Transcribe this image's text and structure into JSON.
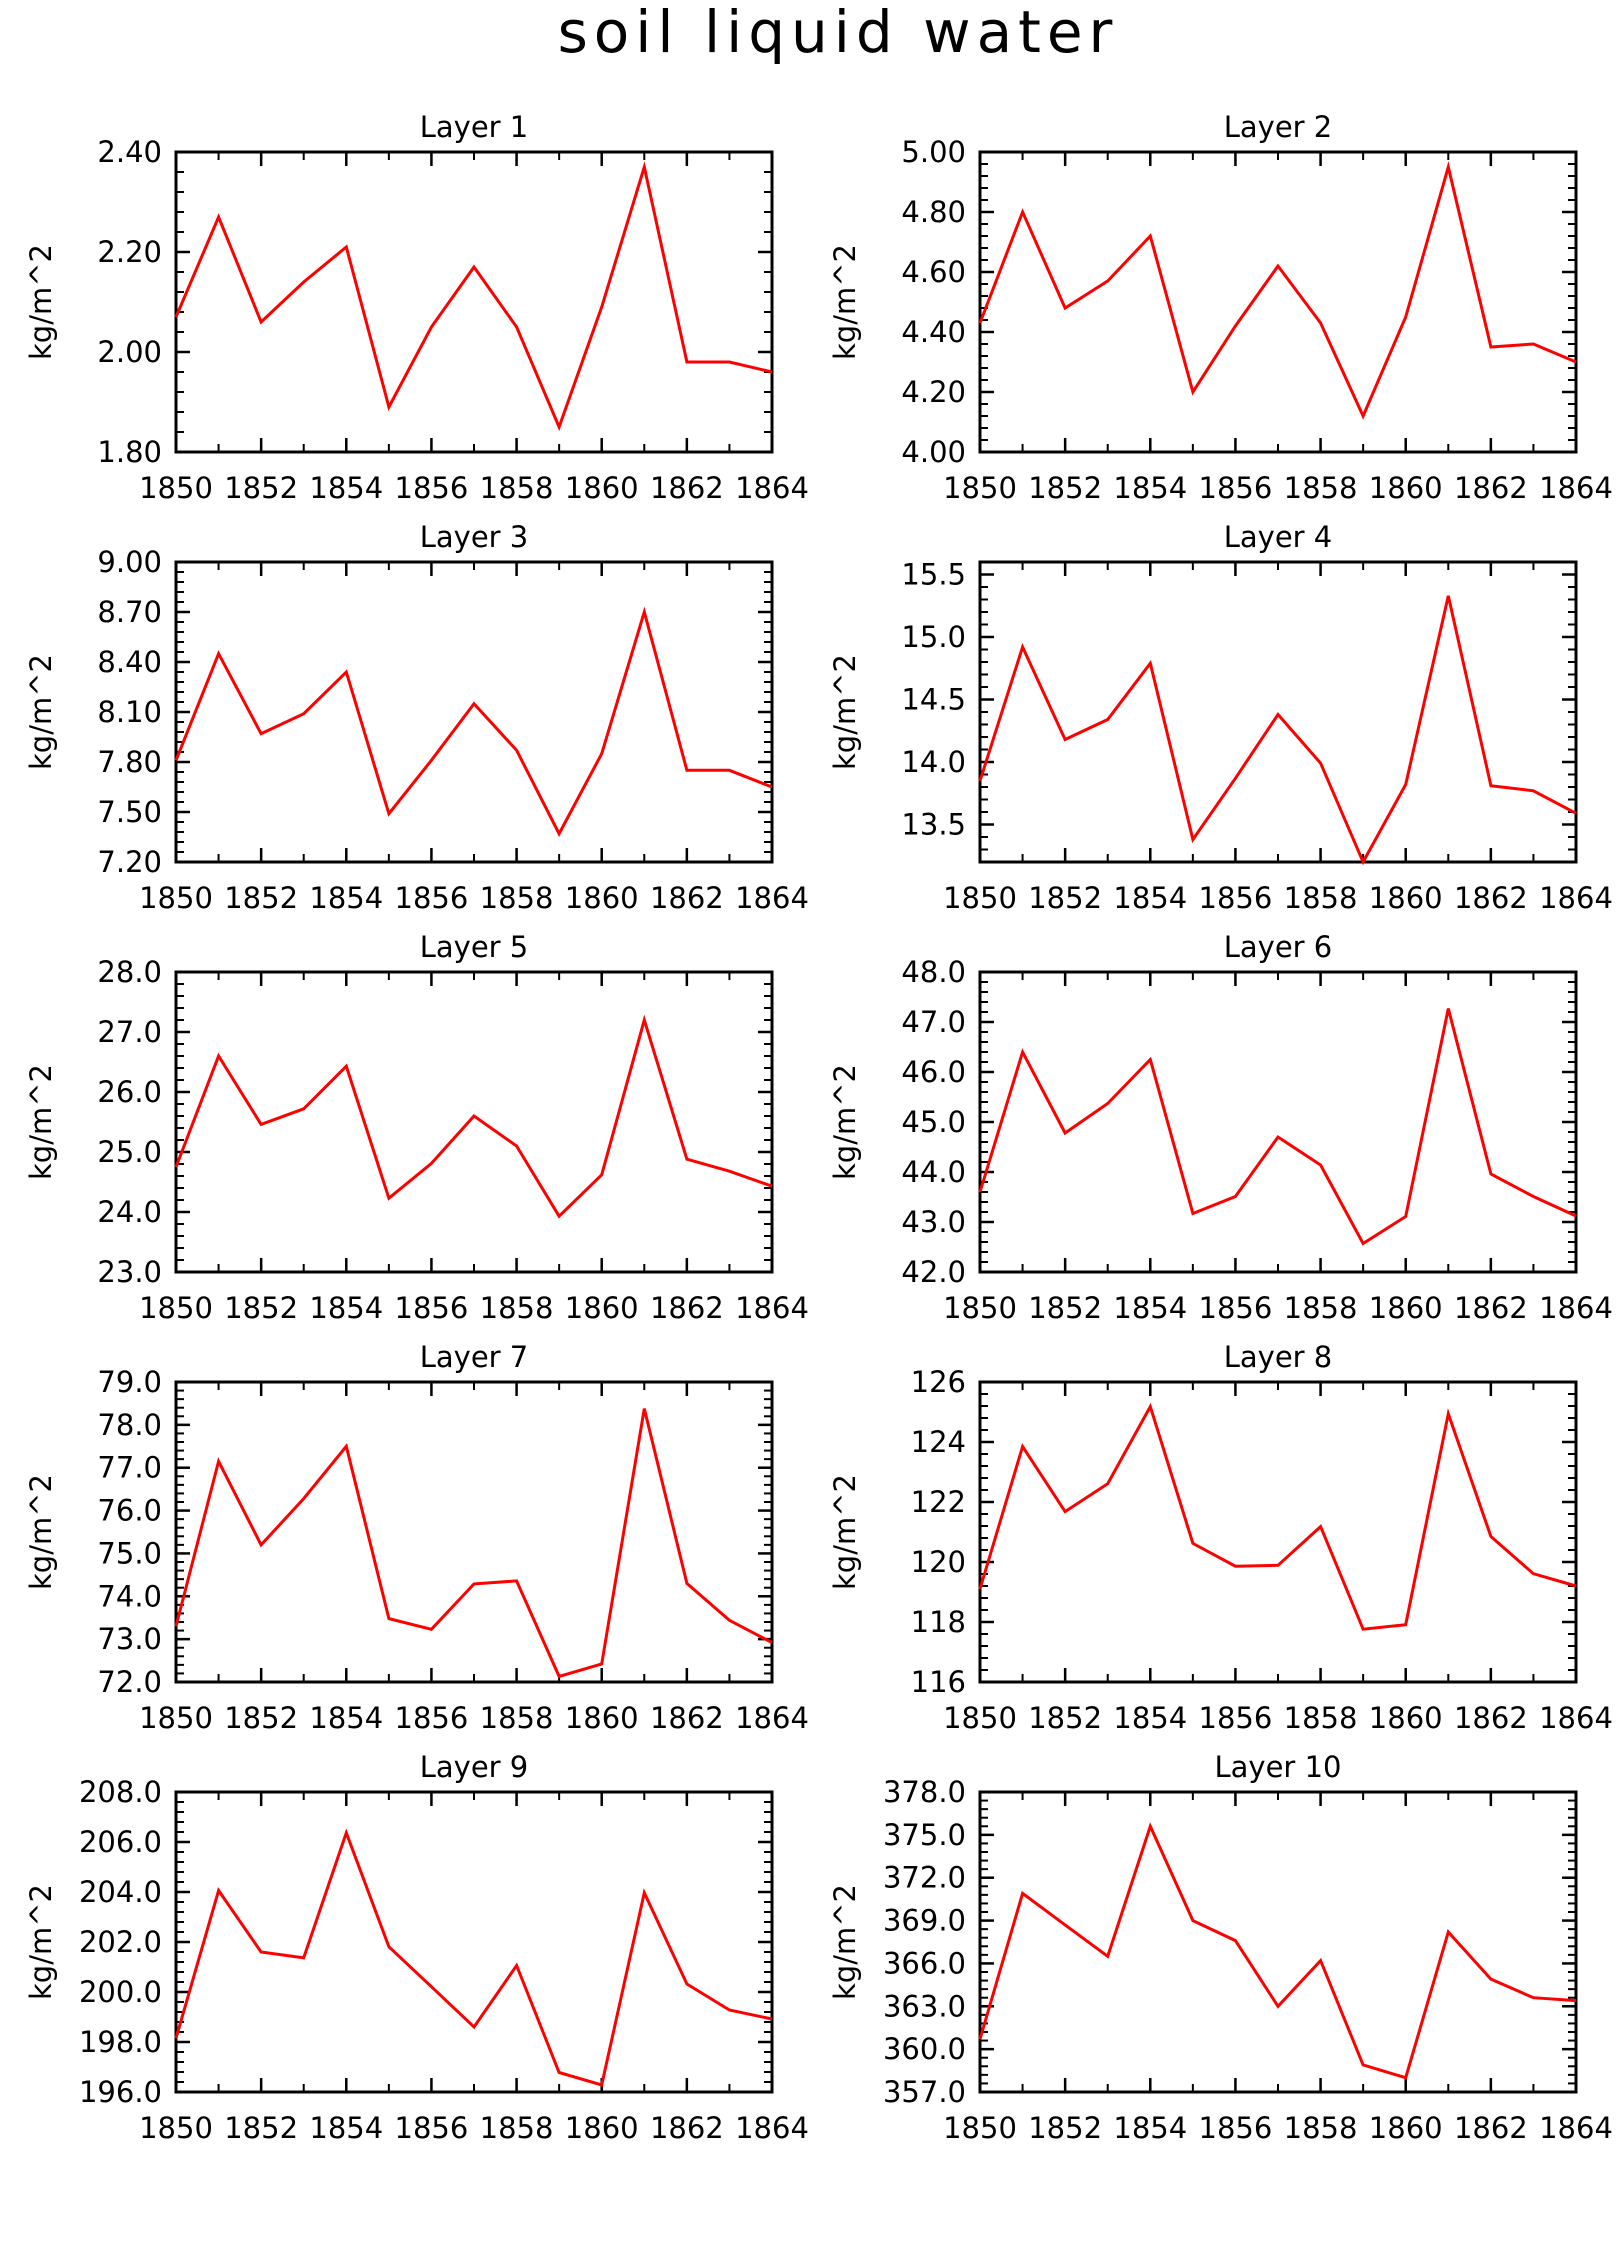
{
  "figure": {
    "title": "soil liquid water"
  },
  "chart_data": [
    {
      "type": "line",
      "title": "Layer 1",
      "ylabel": "kg/m^2",
      "x": [
        1850,
        1851,
        1852,
        1853,
        1854,
        1855,
        1856,
        1857,
        1858,
        1859,
        1860,
        1861,
        1862,
        1863,
        1864
      ],
      "values": [
        2.07,
        2.27,
        2.06,
        2.14,
        2.21,
        1.89,
        2.05,
        2.17,
        2.05,
        1.85,
        2.09,
        2.37,
        1.98,
        1.98,
        1.96
      ],
      "xlim": [
        1850,
        1864
      ],
      "ylim": [
        1.8,
        2.4
      ],
      "xticks": [
        "1850",
        "1852",
        "1854",
        "1856",
        "1858",
        "1860",
        "1862",
        "1864"
      ],
      "yticks": [
        "1.80",
        "2.00",
        "2.20",
        "2.40"
      ],
      "minor_y": 0.04
    },
    {
      "type": "line",
      "title": "Layer 2",
      "ylabel": "kg/m^2",
      "x": [
        1850,
        1851,
        1852,
        1853,
        1854,
        1855,
        1856,
        1857,
        1858,
        1859,
        1860,
        1861,
        1862,
        1863,
        1864
      ],
      "values": [
        4.43,
        4.8,
        4.48,
        4.57,
        4.72,
        4.2,
        4.42,
        4.62,
        4.43,
        4.12,
        4.45,
        4.95,
        4.35,
        4.36,
        4.3
      ],
      "xlim": [
        1850,
        1864
      ],
      "ylim": [
        4.0,
        5.0
      ],
      "xticks": [
        "1850",
        "1852",
        "1854",
        "1856",
        "1858",
        "1860",
        "1862",
        "1864"
      ],
      "yticks": [
        "4.00",
        "4.20",
        "4.40",
        "4.60",
        "4.80",
        "5.00"
      ],
      "minor_y": 0.04
    },
    {
      "type": "line",
      "title": "Layer 3",
      "ylabel": "kg/m^2",
      "x": [
        1850,
        1851,
        1852,
        1853,
        1854,
        1855,
        1856,
        1857,
        1858,
        1859,
        1860,
        1861,
        1862,
        1863,
        1864
      ],
      "values": [
        7.81,
        8.45,
        7.97,
        8.09,
        8.34,
        7.49,
        7.81,
        8.15,
        7.87,
        7.37,
        7.85,
        8.7,
        7.75,
        7.75,
        7.65
      ],
      "xlim": [
        1850,
        1864
      ],
      "ylim": [
        7.2,
        9.0
      ],
      "xticks": [
        "1850",
        "1852",
        "1854",
        "1856",
        "1858",
        "1860",
        "1862",
        "1864"
      ],
      "yticks": [
        "7.20",
        "7.50",
        "7.80",
        "8.10",
        "8.40",
        "8.70",
        "9.00"
      ],
      "minor_y": 0.06
    },
    {
      "type": "line",
      "title": "Layer 4",
      "ylabel": "kg/m^2",
      "x": [
        1850,
        1851,
        1852,
        1853,
        1854,
        1855,
        1856,
        1857,
        1858,
        1859,
        1860,
        1861,
        1862,
        1863,
        1864
      ],
      "values": [
        13.85,
        14.92,
        14.18,
        14.34,
        14.79,
        13.38,
        13.87,
        14.38,
        13.99,
        13.2,
        13.82,
        15.33,
        13.81,
        13.77,
        13.59
      ],
      "xlim": [
        1850,
        1864
      ],
      "ylim": [
        13.2,
        15.6
      ],
      "xticks": [
        "1850",
        "1852",
        "1854",
        "1856",
        "1858",
        "1860",
        "1862",
        "1864"
      ],
      "yticks": [
        "13.5",
        "14.0",
        "14.5",
        "15.0",
        "15.5"
      ],
      "minor_y": 0.1
    },
    {
      "type": "line",
      "title": "Layer 5",
      "ylabel": "kg/m^2",
      "x": [
        1850,
        1851,
        1852,
        1853,
        1854,
        1855,
        1856,
        1857,
        1858,
        1859,
        1860,
        1861,
        1862,
        1863,
        1864
      ],
      "values": [
        24.75,
        26.6,
        25.46,
        25.72,
        26.43,
        24.23,
        24.81,
        25.6,
        25.1,
        23.93,
        24.62,
        27.2,
        24.88,
        24.68,
        24.43
      ],
      "xlim": [
        1850,
        1864
      ],
      "ylim": [
        23.0,
        28.0
      ],
      "xticks": [
        "1850",
        "1852",
        "1854",
        "1856",
        "1858",
        "1860",
        "1862",
        "1864"
      ],
      "yticks": [
        "23.0",
        "24.0",
        "25.0",
        "26.0",
        "27.0",
        "28.0"
      ],
      "minor_y": 0.2
    },
    {
      "type": "line",
      "title": "Layer 6",
      "ylabel": "kg/m^2",
      "x": [
        1850,
        1851,
        1852,
        1853,
        1854,
        1855,
        1856,
        1857,
        1858,
        1859,
        1860,
        1861,
        1862,
        1863,
        1864
      ],
      "values": [
        43.6,
        46.4,
        44.78,
        45.37,
        46.25,
        43.17,
        43.51,
        44.7,
        44.14,
        42.57,
        43.11,
        47.27,
        43.96,
        43.51,
        43.12
      ],
      "xlim": [
        1850,
        1864
      ],
      "ylim": [
        42.0,
        48.0
      ],
      "xticks": [
        "1850",
        "1852",
        "1854",
        "1856",
        "1858",
        "1860",
        "1862",
        "1864"
      ],
      "yticks": [
        "42.0",
        "43.0",
        "44.0",
        "45.0",
        "46.0",
        "47.0",
        "48.0"
      ],
      "minor_y": 0.2
    },
    {
      "type": "line",
      "title": "Layer 7",
      "ylabel": "kg/m^2",
      "x": [
        1850,
        1851,
        1852,
        1853,
        1854,
        1855,
        1856,
        1857,
        1858,
        1859,
        1860,
        1861,
        1862,
        1863,
        1864
      ],
      "values": [
        73.3,
        77.15,
        75.2,
        76.28,
        77.5,
        73.48,
        73.23,
        74.29,
        74.36,
        72.13,
        72.42,
        78.38,
        74.3,
        73.44,
        72.92
      ],
      "xlim": [
        1850,
        1864
      ],
      "ylim": [
        72.0,
        79.0
      ],
      "xticks": [
        "1850",
        "1852",
        "1854",
        "1856",
        "1858",
        "1860",
        "1862",
        "1864"
      ],
      "yticks": [
        "72.0",
        "73.0",
        "74.0",
        "75.0",
        "76.0",
        "77.0",
        "78.0",
        "79.0"
      ],
      "minor_y": 0.2
    },
    {
      "type": "line",
      "title": "Layer 8",
      "ylabel": "kg/m^2",
      "x": [
        1850,
        1851,
        1852,
        1853,
        1854,
        1855,
        1856,
        1857,
        1858,
        1859,
        1860,
        1861,
        1862,
        1863,
        1864
      ],
      "values": [
        119.1,
        123.85,
        121.68,
        122.61,
        125.18,
        120.62,
        119.86,
        119.89,
        121.18,
        117.76,
        117.91,
        124.94,
        120.85,
        119.61,
        119.2
      ],
      "xlim": [
        1850,
        1864
      ],
      "ylim": [
        116,
        126
      ],
      "xticks": [
        "1850",
        "1852",
        "1854",
        "1856",
        "1858",
        "1860",
        "1862",
        "1864"
      ],
      "yticks": [
        "116",
        "118",
        "120",
        "122",
        "124",
        "126"
      ],
      "minor_y": 0.4
    },
    {
      "type": "line",
      "title": "Layer 9",
      "ylabel": "kg/m^2",
      "x": [
        1850,
        1851,
        1852,
        1853,
        1854,
        1855,
        1856,
        1857,
        1858,
        1859,
        1860,
        1861,
        1862,
        1863,
        1864
      ],
      "values": [
        198.15,
        204.06,
        201.6,
        201.37,
        206.37,
        201.81,
        200.21,
        198.6,
        201.06,
        196.78,
        196.28,
        203.97,
        200.32,
        199.28,
        198.92
      ],
      "xlim": [
        1850,
        1864
      ],
      "ylim": [
        196,
        208
      ],
      "xticks": [
        "1850",
        "1852",
        "1854",
        "1856",
        "1858",
        "1860",
        "1862",
        "1864"
      ],
      "yticks": [
        "196.0",
        "198.0",
        "200.0",
        "202.0",
        "204.0",
        "206.0",
        "208.0"
      ],
      "minor_y": 0.4
    },
    {
      "type": "line",
      "title": "Layer 10",
      "ylabel": "kg/m^2",
      "x": [
        1850,
        1851,
        1852,
        1853,
        1854,
        1855,
        1856,
        1857,
        1858,
        1859,
        1860,
        1861,
        1862,
        1863,
        1864
      ],
      "values": [
        360.7,
        370.9,
        368.7,
        366.5,
        375.6,
        369.0,
        367.6,
        363.0,
        366.2,
        358.9,
        358.0,
        368.2,
        364.9,
        363.6,
        363.4
      ],
      "xlim": [
        1850,
        1864
      ],
      "ylim": [
        357,
        378
      ],
      "xticks": [
        "1850",
        "1852",
        "1854",
        "1856",
        "1858",
        "1860",
        "1862",
        "1864"
      ],
      "yticks": [
        "357.0",
        "360.0",
        "363.0",
        "366.0",
        "369.0",
        "372.0",
        "375.0",
        "378.0"
      ],
      "minor_y": 0.6
    }
  ]
}
